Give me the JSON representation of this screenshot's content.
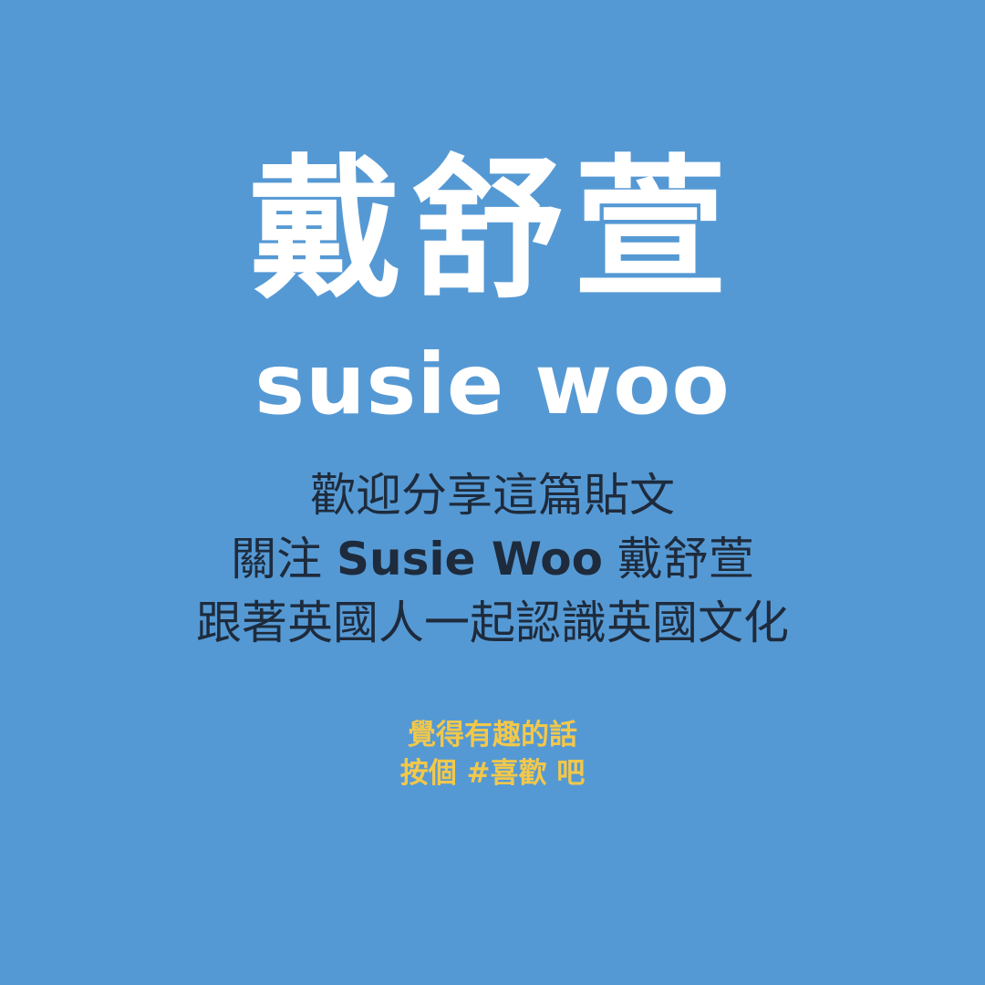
{
  "colors": {
    "background": "#5599D4",
    "logo": "#FFFFFF",
    "body_text": "#1E2B3C",
    "call_to_action": "#F2C84B"
  },
  "logo": {
    "chinese_name": "戴舒萱",
    "english_name": "susie woo"
  },
  "message": {
    "line1": "歡迎分享這篇貼文",
    "line2_prefix": "關注",
    "line2_name": "Susie Woo",
    "line2_suffix": "戴舒萱",
    "line3": "跟著英國人一起認識英國文化"
  },
  "call_to_action": {
    "line1": "覺得有趣的話",
    "line2": "按個 #喜歡 吧"
  }
}
